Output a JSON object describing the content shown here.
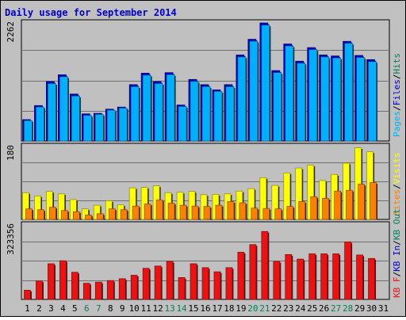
{
  "title": "Daily usage for September 2014",
  "colors": {
    "background": "#c0c0c0",
    "title": "#0000cc",
    "hits": "#00805c",
    "files": "#0000cc",
    "pages": "#00b0ff",
    "visits": "#ffff00",
    "sites": "#ff8000",
    "kbin": "#0000cc",
    "kbout": "#00805c",
    "kbf": "#ee1111",
    "weekend_day": "#00805c"
  },
  "chart_data": [
    {
      "type": "bar",
      "panel": "hits-files-pages",
      "ymax_label": "2262",
      "ylim": [
        0,
        2262
      ],
      "categories": [
        "1",
        "2",
        "3",
        "4",
        "5",
        "6",
        "7",
        "8",
        "9",
        "10",
        "11",
        "12",
        "13",
        "14",
        "15",
        "16",
        "17",
        "18",
        "19",
        "20",
        "21",
        "22",
        "23",
        "24",
        "25",
        "26",
        "27",
        "28",
        "29",
        "30",
        "31"
      ],
      "legend": [
        "Pages",
        "Files",
        "Hits"
      ],
      "series": [
        {
          "name": "Files",
          "values": [
            410,
            680,
            1140,
            1270,
            900,
            520,
            530,
            610,
            650,
            1080,
            1300,
            1140,
            1310,
            690,
            1180,
            1080,
            980,
            1080,
            1650,
            1950,
            2262,
            1350,
            1860,
            1530,
            1790,
            1650,
            1630,
            1910,
            1640,
            1560,
            null
          ]
        },
        {
          "name": "Pages",
          "values": [
            390,
            650,
            1100,
            1230,
            860,
            490,
            510,
            590,
            630,
            1040,
            1260,
            1100,
            1270,
            660,
            1140,
            1040,
            950,
            1040,
            1610,
            1910,
            2220,
            1310,
            1820,
            1490,
            1750,
            1610,
            1590,
            1870,
            1600,
            1520,
            null
          ]
        }
      ]
    },
    {
      "type": "bar",
      "panel": "visits-sites",
      "ymax_label": "180",
      "ylim": [
        0,
        180
      ],
      "categories": [
        "1",
        "2",
        "3",
        "4",
        "5",
        "6",
        "7",
        "8",
        "9",
        "10",
        "11",
        "12",
        "13",
        "14",
        "15",
        "16",
        "17",
        "18",
        "19",
        "20",
        "21",
        "22",
        "23",
        "24",
        "25",
        "26",
        "27",
        "28",
        "29",
        "30",
        "31"
      ],
      "legend": [
        "Visits",
        "Sites"
      ],
      "series": [
        {
          "name": "Visits",
          "values": [
            66,
            58,
            69,
            63,
            49,
            26,
            35,
            46,
            36,
            78,
            79,
            83,
            66,
            67,
            69,
            61,
            62,
            63,
            70,
            76,
            103,
            84,
            115,
            127,
            134,
            96,
            111,
            139,
            177,
            167,
            null
          ]
        },
        {
          "name": "Sites",
          "values": [
            26,
            24,
            30,
            22,
            19,
            11,
            14,
            26,
            24,
            33,
            38,
            48,
            40,
            35,
            33,
            32,
            35,
            44,
            41,
            28,
            27,
            26,
            32,
            44,
            56,
            52,
            70,
            72,
            87,
            91,
            null
          ]
        }
      ]
    },
    {
      "type": "bar",
      "panel": "kbytes",
      "ymax_label": "323356",
      "ylim": [
        0,
        323356
      ],
      "categories": [
        "1",
        "2",
        "3",
        "4",
        "5",
        "6",
        "7",
        "8",
        "9",
        "10",
        "11",
        "12",
        "13",
        "14",
        "15",
        "16",
        "17",
        "18",
        "19",
        "20",
        "21",
        "22",
        "23",
        "24",
        "25",
        "26",
        "27",
        "28",
        "29",
        "30",
        "31"
      ],
      "legend": [
        "KB F",
        "KB In",
        "KB Out"
      ],
      "series": [
        {
          "name": "KB F",
          "values": [
            40000,
            80000,
            155000,
            168000,
            118000,
            70000,
            75000,
            82000,
            90000,
            105000,
            135000,
            145000,
            165000,
            95000,
            155000,
            138000,
            120000,
            138000,
            205000,
            238000,
            295000,
            165000,
            195000,
            175000,
            198000,
            198000,
            198000,
            250000,
            193000,
            178000,
            null
          ]
        }
      ]
    }
  ],
  "days": [
    {
      "label": "1",
      "weekend": false
    },
    {
      "label": "2",
      "weekend": false
    },
    {
      "label": "3",
      "weekend": false
    },
    {
      "label": "4",
      "weekend": false
    },
    {
      "label": "5",
      "weekend": false
    },
    {
      "label": "6",
      "weekend": true
    },
    {
      "label": "7",
      "weekend": true
    },
    {
      "label": "8",
      "weekend": false
    },
    {
      "label": "9",
      "weekend": false
    },
    {
      "label": "10",
      "weekend": false
    },
    {
      "label": "11",
      "weekend": false
    },
    {
      "label": "12",
      "weekend": false
    },
    {
      "label": "13",
      "weekend": true
    },
    {
      "label": "14",
      "weekend": true
    },
    {
      "label": "15",
      "weekend": false
    },
    {
      "label": "16",
      "weekend": false
    },
    {
      "label": "17",
      "weekend": false
    },
    {
      "label": "18",
      "weekend": false
    },
    {
      "label": "19",
      "weekend": false
    },
    {
      "label": "20",
      "weekend": true
    },
    {
      "label": "21",
      "weekend": true
    },
    {
      "label": "22",
      "weekend": false
    },
    {
      "label": "23",
      "weekend": false
    },
    {
      "label": "24",
      "weekend": false
    },
    {
      "label": "25",
      "weekend": false
    },
    {
      "label": "26",
      "weekend": false
    },
    {
      "label": "27",
      "weekend": true
    },
    {
      "label": "28",
      "weekend": true
    },
    {
      "label": "29",
      "weekend": false
    },
    {
      "label": "30",
      "weekend": false
    },
    {
      "label": "31",
      "weekend": false
    }
  ]
}
